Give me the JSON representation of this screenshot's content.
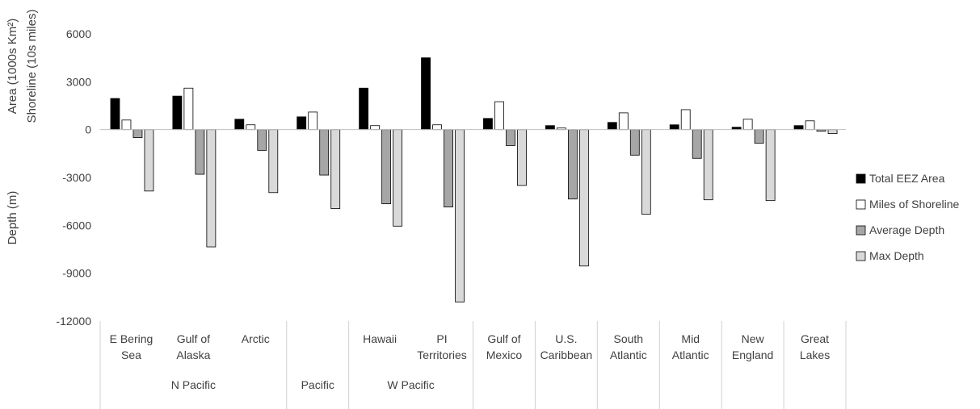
{
  "chart_data": {
    "type": "bar",
    "ylabel_top_lines": [
      "Area (1000s Km²)",
      "Shoreline (10s miles)"
    ],
    "ylabel_bottom": "Depth (m)",
    "ylim": [
      -12000,
      6000
    ],
    "yticks": [
      "6000",
      "3000",
      "0",
      "-3000",
      "-6000",
      "-9000",
      "-12000"
    ],
    "grid": false,
    "legend_position": "right",
    "categories": [
      {
        "lines": [
          "E Bering",
          "Sea"
        ]
      },
      {
        "lines": [
          "Gulf of",
          "Alaska"
        ]
      },
      {
        "lines": [
          "Arctic"
        ]
      },
      {
        "lines": []
      },
      {
        "lines": [
          "Hawaii"
        ]
      },
      {
        "lines": [
          "PI",
          "Territories"
        ]
      },
      {
        "lines": [
          "Gulf of",
          "Mexico"
        ]
      },
      {
        "lines": [
          "U.S.",
          "Caribbean"
        ]
      },
      {
        "lines": [
          "South",
          "Atlantic"
        ]
      },
      {
        "lines": [
          "Mid",
          "Atlantic"
        ]
      },
      {
        "lines": [
          "New",
          "England"
        ]
      },
      {
        "lines": [
          "Great",
          "Lakes"
        ]
      }
    ],
    "groups": [
      {
        "label": "N Pacific",
        "start": 0,
        "end": 2
      },
      {
        "label": "Pacific",
        "start": 3,
        "end": 3
      },
      {
        "label": "W Pacific",
        "start": 4,
        "end": 5
      },
      {
        "label": "",
        "start": 6,
        "end": 6
      },
      {
        "label": "",
        "start": 7,
        "end": 7
      },
      {
        "label": "",
        "start": 8,
        "end": 8
      },
      {
        "label": "",
        "start": 9,
        "end": 9
      },
      {
        "label": "",
        "start": 10,
        "end": 10
      },
      {
        "label": "",
        "start": 11,
        "end": 11
      }
    ],
    "series": [
      {
        "name": "Total EEZ Area",
        "fill": "#000000",
        "stroke": "#000000",
        "values": [
          1950,
          2100,
          650,
          800,
          2600,
          4500,
          700,
          250,
          450,
          300,
          150,
          250
        ]
      },
      {
        "name": "Miles of Shoreline",
        "fill": "#ffffff",
        "stroke": "#000000",
        "values": [
          600,
          2600,
          300,
          1100,
          250,
          300,
          1750,
          100,
          1050,
          1250,
          650,
          550
        ]
      },
      {
        "name": "Average Depth",
        "fill": "#a6a6a6",
        "stroke": "#000000",
        "values": [
          -500,
          -2800,
          -1300,
          -2850,
          -4650,
          -4850,
          -1000,
          -4350,
          -1600,
          -1800,
          -850,
          -100
        ]
      },
      {
        "name": "Max Depth",
        "fill": "#d9d9d9",
        "stroke": "#000000",
        "values": [
          -3850,
          -7350,
          -3950,
          -4950,
          -6050,
          -10800,
          -3500,
          -8550,
          -5300,
          -4400,
          -4450,
          -250
        ]
      }
    ]
  }
}
